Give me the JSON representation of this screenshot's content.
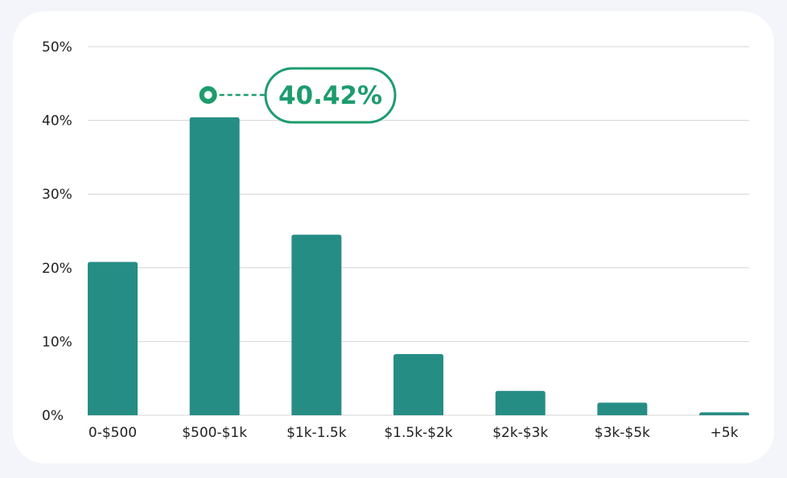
{
  "chart_data": {
    "type": "bar",
    "categories": [
      "0-$500",
      "$500-$1k",
      "$1k-1.5k",
      "$1.5k-$2k",
      "$2k-$3k",
      "$3k-$5k",
      "+5k"
    ],
    "values": [
      20.8,
      40.42,
      24.5,
      8.3,
      3.3,
      1.7,
      0.4
    ],
    "ylim": [
      0,
      50
    ],
    "yticks": [
      0,
      10,
      20,
      30,
      40,
      50
    ],
    "ytick_labels": [
      "0%",
      "10%",
      "20%",
      "30%",
      "40%",
      "50%"
    ],
    "grid": true,
    "highlight": {
      "index": 1,
      "label": "40.42%"
    },
    "colors": {
      "bar": "#268d85",
      "grid": "#d4d4d4",
      "callout": "#1d9c6e",
      "text": "#1f1f1f",
      "card": "#ffffff",
      "background": "#f4f5fb"
    }
  }
}
